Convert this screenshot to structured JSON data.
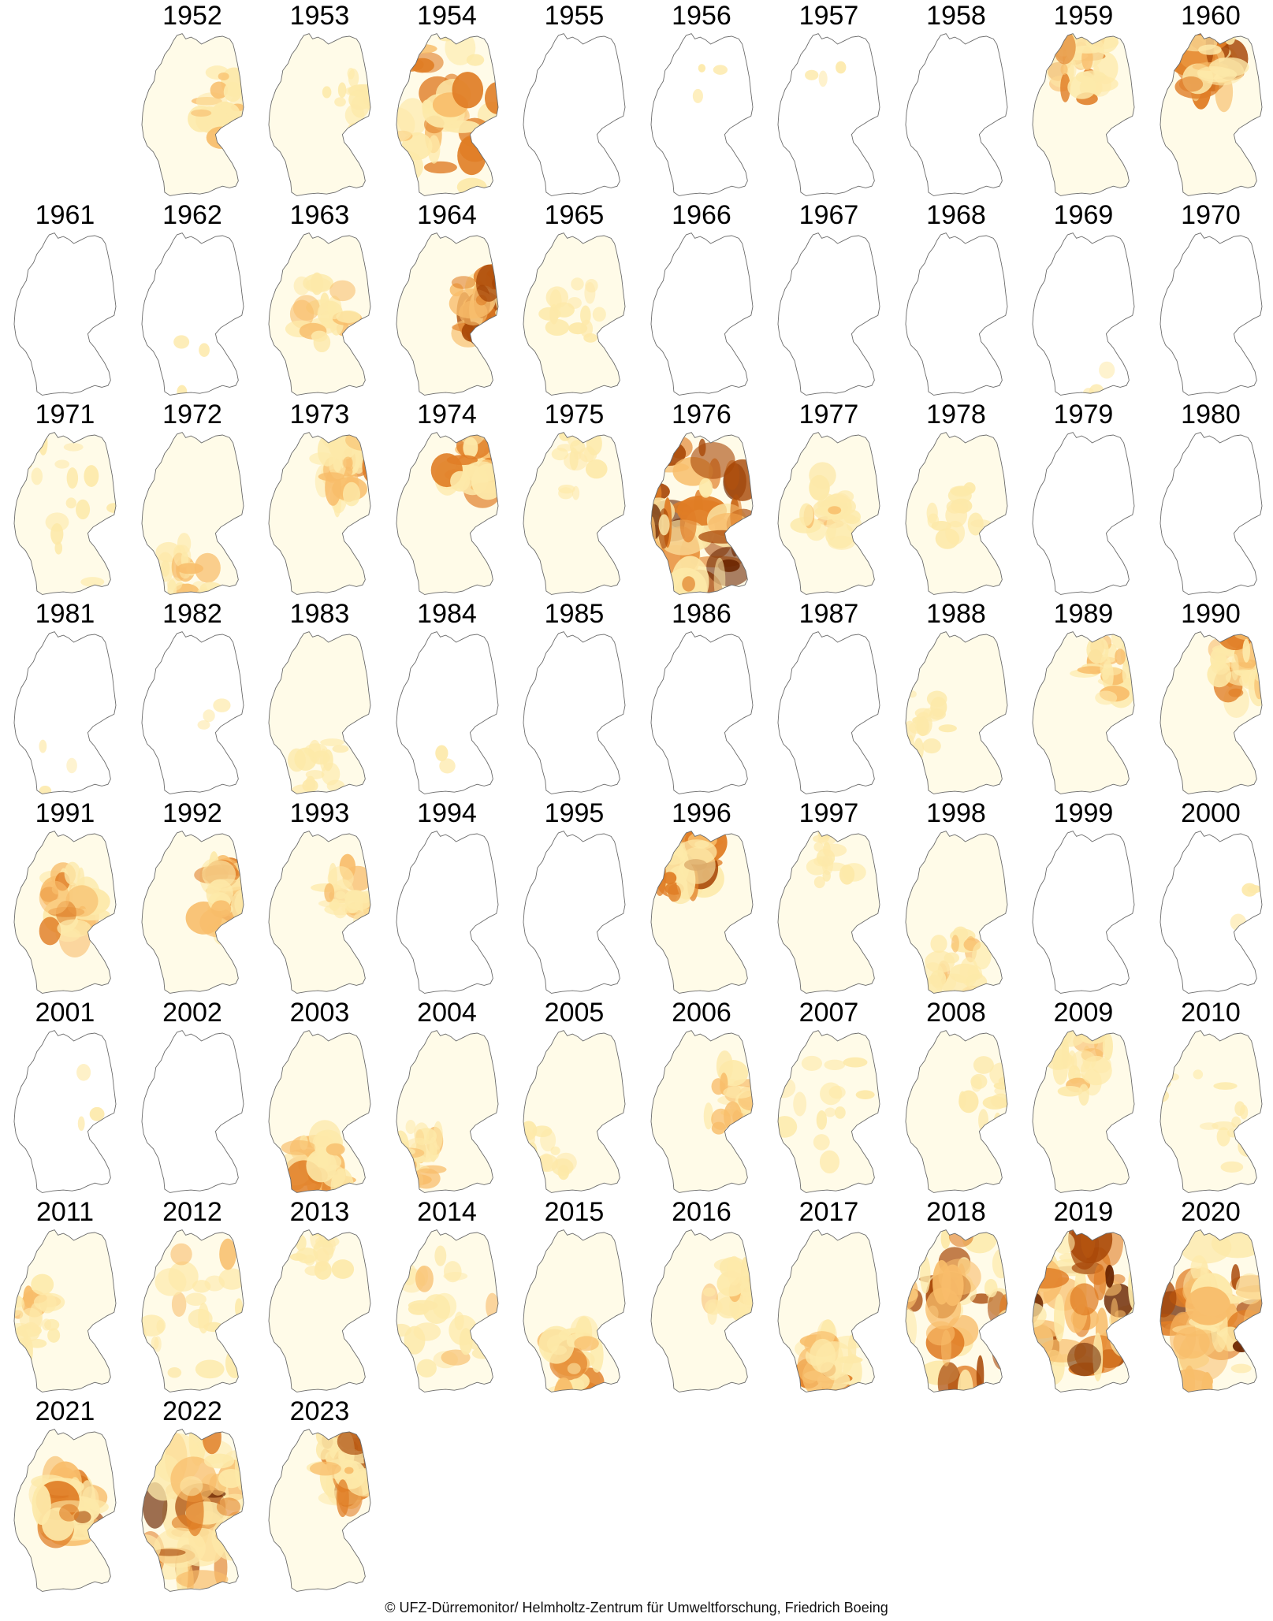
{
  "figure": {
    "palette": [
      "#fffbe8",
      "#fde9a9",
      "#f8bd6a",
      "#e07d25",
      "#a84808",
      "#6b2500"
    ],
    "outline_color": "#6a6a6a",
    "columns": 10,
    "start_column": 1,
    "credit": "© UFZ-Dürremonitor/ Helmholtz-Zentrum für Umweltforschung, Friedrich Boeing"
  },
  "years": [
    {
      "label": "1952",
      "severity": 2,
      "hotspot": "east"
    },
    {
      "label": "1953",
      "severity": 1,
      "hotspot": "east"
    },
    {
      "label": "1954",
      "severity": 3,
      "hotspot": "widespread"
    },
    {
      "label": "1955",
      "severity": 0,
      "hotspot": "none"
    },
    {
      "label": "1956",
      "severity": 0,
      "hotspot": "north"
    },
    {
      "label": "1957",
      "severity": 0,
      "hotspot": "north"
    },
    {
      "label": "1958",
      "severity": 0,
      "hotspot": "none"
    },
    {
      "label": "1959",
      "severity": 3,
      "hotspot": "north"
    },
    {
      "label": "1960",
      "severity": 4,
      "hotspot": "north"
    },
    {
      "label": "1961",
      "severity": 0,
      "hotspot": "none"
    },
    {
      "label": "1962",
      "severity": 0,
      "hotspot": "south"
    },
    {
      "label": "1963",
      "severity": 2,
      "hotspot": "center"
    },
    {
      "label": "1964",
      "severity": 4,
      "hotspot": "east"
    },
    {
      "label": "1965",
      "severity": 1,
      "hotspot": "center"
    },
    {
      "label": "1966",
      "severity": 0,
      "hotspot": "none"
    },
    {
      "label": "1967",
      "severity": 0,
      "hotspot": "none"
    },
    {
      "label": "1968",
      "severity": 0,
      "hotspot": "none"
    },
    {
      "label": "1969",
      "severity": 0,
      "hotspot": "south"
    },
    {
      "label": "1970",
      "severity": 0,
      "hotspot": "none"
    },
    {
      "label": "1971",
      "severity": 1,
      "hotspot": "widespread"
    },
    {
      "label": "1972",
      "severity": 2,
      "hotspot": "south"
    },
    {
      "label": "1973",
      "severity": 3,
      "hotspot": "northeast"
    },
    {
      "label": "1974",
      "severity": 3,
      "hotspot": "northeast"
    },
    {
      "label": "1975",
      "severity": 1,
      "hotspot": "north"
    },
    {
      "label": "1976",
      "severity": 5,
      "hotspot": "widespread"
    },
    {
      "label": "1977",
      "severity": 2,
      "hotspot": "center"
    },
    {
      "label": "1978",
      "severity": 1,
      "hotspot": "center"
    },
    {
      "label": "1979",
      "severity": 0,
      "hotspot": "none"
    },
    {
      "label": "1980",
      "severity": 0,
      "hotspot": "none"
    },
    {
      "label": "1981",
      "severity": 0,
      "hotspot": "south"
    },
    {
      "label": "1982",
      "severity": 0,
      "hotspot": "center"
    },
    {
      "label": "1983",
      "severity": 1,
      "hotspot": "south"
    },
    {
      "label": "1984",
      "severity": 0,
      "hotspot": "south"
    },
    {
      "label": "1985",
      "severity": 0,
      "hotspot": "none"
    },
    {
      "label": "1986",
      "severity": 0,
      "hotspot": "none"
    },
    {
      "label": "1987",
      "severity": 0,
      "hotspot": "none"
    },
    {
      "label": "1988",
      "severity": 1,
      "hotspot": "west"
    },
    {
      "label": "1989",
      "severity": 2,
      "hotspot": "northeast"
    },
    {
      "label": "1990",
      "severity": 3,
      "hotspot": "northeast"
    },
    {
      "label": "1991",
      "severity": 3,
      "hotspot": "center"
    },
    {
      "label": "1992",
      "severity": 3,
      "hotspot": "east"
    },
    {
      "label": "1993",
      "severity": 2,
      "hotspot": "east"
    },
    {
      "label": "1994",
      "severity": 0,
      "hotspot": "none"
    },
    {
      "label": "1995",
      "severity": 0,
      "hotspot": "none"
    },
    {
      "label": "1996",
      "severity": 4,
      "hotspot": "northwest"
    },
    {
      "label": "1997",
      "severity": 1,
      "hotspot": "north"
    },
    {
      "label": "1998",
      "severity": 2,
      "hotspot": "south"
    },
    {
      "label": "1999",
      "severity": 0,
      "hotspot": "none"
    },
    {
      "label": "2000",
      "severity": 0,
      "hotspot": "east"
    },
    {
      "label": "2001",
      "severity": 0,
      "hotspot": "east"
    },
    {
      "label": "2002",
      "severity": 0,
      "hotspot": "none"
    },
    {
      "label": "2003",
      "severity": 3,
      "hotspot": "south"
    },
    {
      "label": "2004",
      "severity": 2,
      "hotspot": "southwest"
    },
    {
      "label": "2005",
      "severity": 1,
      "hotspot": "southwest"
    },
    {
      "label": "2006",
      "severity": 2,
      "hotspot": "east"
    },
    {
      "label": "2007",
      "severity": 1,
      "hotspot": "widespread"
    },
    {
      "label": "2008",
      "severity": 1,
      "hotspot": "east"
    },
    {
      "label": "2009",
      "severity": 2,
      "hotspot": "north"
    },
    {
      "label": "2010",
      "severity": 1,
      "hotspot": "widespread"
    },
    {
      "label": "2011",
      "severity": 2,
      "hotspot": "west"
    },
    {
      "label": "2012",
      "severity": 2,
      "hotspot": "widespread"
    },
    {
      "label": "2013",
      "severity": 1,
      "hotspot": "north"
    },
    {
      "label": "2014",
      "severity": 2,
      "hotspot": "widespread"
    },
    {
      "label": "2015",
      "severity": 3,
      "hotspot": "south"
    },
    {
      "label": "2016",
      "severity": 2,
      "hotspot": "east"
    },
    {
      "label": "2017",
      "severity": 3,
      "hotspot": "south"
    },
    {
      "label": "2018",
      "severity": 4,
      "hotspot": "widespread"
    },
    {
      "label": "2019",
      "severity": 5,
      "hotspot": "widespread"
    },
    {
      "label": "2020",
      "severity": 5,
      "hotspot": "widespread"
    },
    {
      "label": "2021",
      "severity": 4,
      "hotspot": "center"
    },
    {
      "label": "2022",
      "severity": 5,
      "hotspot": "widespread"
    },
    {
      "label": "2023",
      "severity": 4,
      "hotspot": "northeast"
    }
  ]
}
